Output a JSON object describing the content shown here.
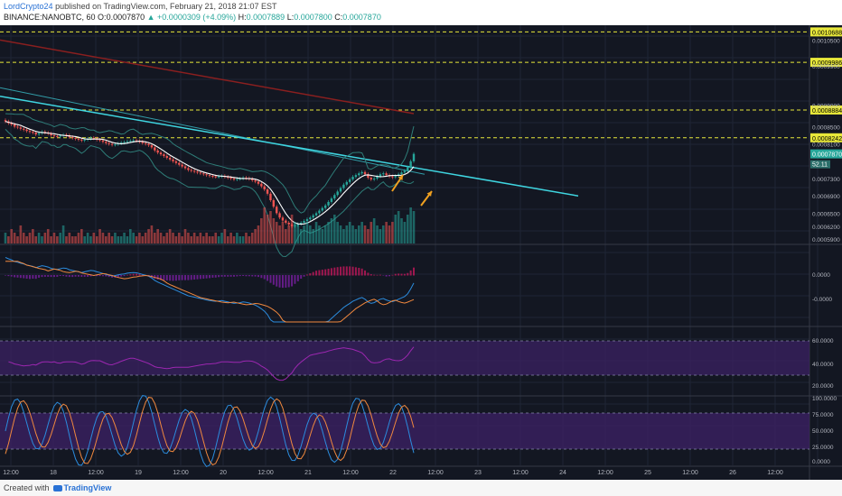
{
  "header": {
    "author": "LordCrypto24",
    "published_text": "published on TradingView.com, February 21, 2018 21:07 EST",
    "symbol": "BINANCE:NANOBTC, 60",
    "open_label": "O:",
    "open": "0.0007870",
    "change": "+0.0000309 (+4.09%)",
    "high_label": "H:",
    "high": "0.0007889",
    "low_label": "L:",
    "low": "0.0007800",
    "close_label": "C:",
    "close": "0.0007870"
  },
  "footer": {
    "created_with": "Created with",
    "brand": "TradingView"
  },
  "colors": {
    "background": "#131722",
    "up": "#26a69a",
    "down": "#ef5350",
    "trendline": "#3fd5e0",
    "long_ma": "#8a1f1f",
    "fast_ma": "#ffffff",
    "resistance": "#e8e83a",
    "macd": "#2b8cde",
    "signal": "#f0883e",
    "oscillator_fill": "#3b2163",
    "arrow": "#f0a020"
  },
  "chart_data": {
    "type": "candlestick",
    "symbol": "NANOBTC",
    "exchange": "BINANCE",
    "interval": "60",
    "x_tick_labels": [
      "12:00",
      "18",
      "12:00",
      "19",
      "12:00",
      "20",
      "12:00",
      "21",
      "12:00",
      "22",
      "12:00",
      "23",
      "12:00",
      "24",
      "12:00",
      "25",
      "12:00",
      "26",
      "12:00"
    ],
    "price_axis_labels": [
      "0.0010500",
      "0.0009900",
      "0.0009000",
      "0.0008500",
      "0.0008100",
      "0.0007300",
      "0.0006900",
      "0.0006500",
      "0.0006200",
      "0.0005900"
    ],
    "resistance_levels": [
      "0.0010688",
      "0.0009986",
      "0.0008884",
      "0.0008242"
    ],
    "current_price_tag": "0.0007870",
    "indicator_tag": "52.11",
    "macd_axis_labels": [
      "0.0000",
      "-0.0000"
    ],
    "rsi_axis_labels": [
      "60.0000",
      "40.0000",
      "20.0000"
    ],
    "stoch_axis_labels": [
      "100.0000",
      "75.0000",
      "50.0000",
      "25.0000",
      "0.0000"
    ],
    "price_ylim": [
      0.00058,
      0.00108
    ],
    "hourly_close": [
      0.000862,
      0.000858,
      0.000855,
      0.00085,
      0.000848,
      0.000845,
      0.000843,
      0.00084,
      0.000838,
      0.000836,
      0.000832,
      0.000835,
      0.000838,
      0.000836,
      0.000834,
      0.00083,
      0.000828,
      0.000827,
      0.000829,
      0.000831,
      0.00083,
      0.000826,
      0.000824,
      0.000822,
      0.00082,
      0.000818,
      0.00082,
      0.000822,
      0.000824,
      0.000823,
      0.00082,
      0.000818,
      0.000815,
      0.000812,
      0.00081,
      0.000808,
      0.000809,
      0.000811,
      0.000813,
      0.000814,
      0.000816,
      0.000817,
      0.000818,
      0.000817,
      0.000815,
      0.000812,
      0.00081,
      0.000807,
      0.000802,
      0.000795,
      0.00079,
      0.000786,
      0.000782,
      0.000778,
      0.000774,
      0.00077,
      0.000766,
      0.000762,
      0.000758,
      0.000754,
      0.00075,
      0.000748,
      0.000746,
      0.000744,
      0.000742,
      0.00074,
      0.000738,
      0.000736,
      0.000735,
      0.000734,
      0.000735,
      0.000736,
      0.000734,
      0.000732,
      0.00073,
      0.000728,
      0.000729,
      0.00073,
      0.000732,
      0.000731,
      0.000729,
      0.000726,
      0.000723,
      0.000718,
      0.000712,
      0.000705,
      0.000695,
      0.00068,
      0.000665,
      0.00065,
      0.00064,
      0.000633,
      0.000628,
      0.000624,
      0.00062,
      0.000622,
      0.000625,
      0.000628,
      0.000632,
      0.000636,
      0.00064,
      0.000645,
      0.00065,
      0.000656,
      0.000662,
      0.000668,
      0.000676,
      0.000684,
      0.000692,
      0.0007,
      0.000708,
      0.000716,
      0.000722,
      0.000728,
      0.000734,
      0.000738,
      0.000742,
      0.000745,
      0.00074,
      0.000732,
      0.000728,
      0.00073,
      0.000735,
      0.00074,
      0.000742,
      0.000738,
      0.000735,
      0.000733,
      0.000736,
      0.00074,
      0.000744,
      0.000748,
      0.000756,
      0.00077,
      0.000787
    ],
    "long_ma": [
      0.00105,
      0.00088
    ],
    "trendline": [
      0.00092,
      0.00069
    ],
    "volume_relative": [
      0.3,
      0.2,
      0.4,
      0.3,
      0.2,
      0.5,
      0.3,
      0.2,
      0.3,
      0.4,
      0.2,
      0.3,
      0.2,
      0.3,
      0.4,
      0.2,
      0.3,
      0.2,
      0.3,
      0.5,
      0.2,
      0.3,
      0.2,
      0.2,
      0.3,
      0.4,
      0.2,
      0.3,
      0.2,
      0.3,
      0.2,
      0.4,
      0.3,
      0.2,
      0.3,
      0.2,
      0.3,
      0.2,
      0.2,
      0.3,
      0.2,
      0.4,
      0.3,
      0.2,
      0.3,
      0.2,
      0.3,
      0.4,
      0.5,
      0.3,
      0.4,
      0.3,
      0.2,
      0.3,
      0.4,
      0.3,
      0.2,
      0.3,
      0.2,
      0.4,
      0.3,
      0.2,
      0.3,
      0.2,
      0.3,
      0.2,
      0.3,
      0.2,
      0.2,
      0.3,
      0.2,
      0.3,
      0.4,
      0.2,
      0.3,
      0.2,
      0.3,
      0.2,
      0.2,
      0.3,
      0.2,
      0.3,
      0.4,
      0.5,
      0.7,
      1.0,
      0.8,
      0.9,
      0.7,
      0.6,
      0.5,
      0.6,
      0.4,
      0.5,
      0.8,
      0.6,
      0.5,
      0.4,
      0.5,
      0.6,
      0.5,
      0.4,
      0.6,
      0.5,
      0.4,
      0.5,
      0.6,
      0.7,
      0.8,
      0.6,
      0.5,
      0.4,
      0.5,
      0.6,
      0.5,
      0.4,
      0.5,
      0.6,
      0.5,
      0.4,
      0.6,
      0.7,
      0.5,
      0.4,
      0.5,
      0.6,
      0.5,
      0.6,
      0.8,
      0.9,
      0.7,
      0.6,
      0.8,
      1.0,
      0.9,
      0.7
    ]
  }
}
